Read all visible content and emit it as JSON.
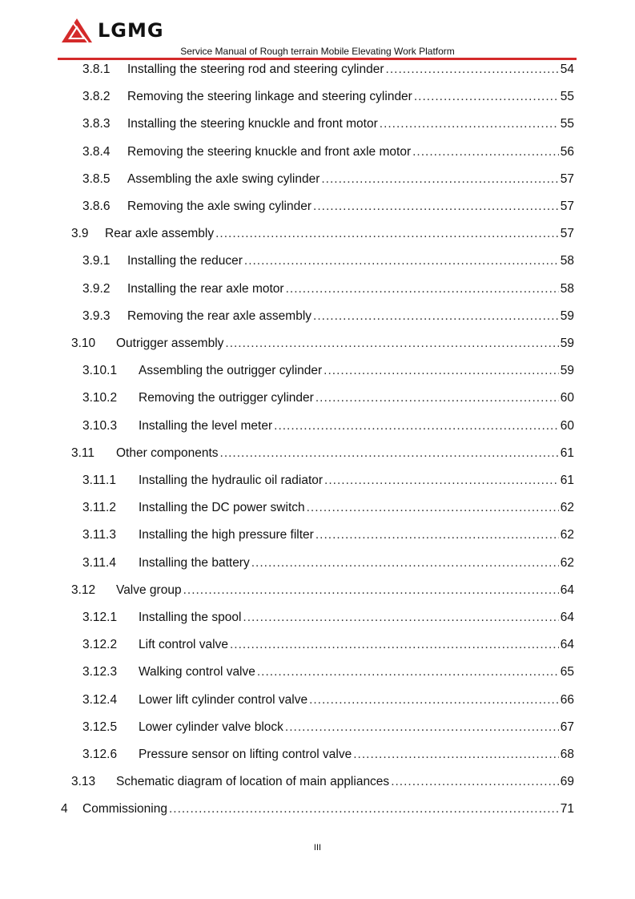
{
  "header": {
    "logo_text": "LGMG",
    "subtitle": "Service Manual of Rough terrain Mobile Elevating Work Platform",
    "accent_color": "#d42a2a"
  },
  "toc": [
    {
      "level": 3,
      "num": "3.8.1",
      "title": "Installing the steering rod and steering cylinder",
      "page": "54"
    },
    {
      "level": 3,
      "num": "3.8.2",
      "title": "Removing the steering linkage and steering cylinder",
      "page": "55"
    },
    {
      "level": 3,
      "num": "3.8.3",
      "title": "Installing the steering knuckle and front motor",
      "page": "55"
    },
    {
      "level": 3,
      "num": "3.8.4",
      "title": "Removing the steering knuckle and front axle motor",
      "page": "56"
    },
    {
      "level": 3,
      "num": "3.8.5",
      "title": "Assembling the axle swing cylinder",
      "page": "57"
    },
    {
      "level": 3,
      "num": "3.8.6",
      "title": "Removing the axle swing cylinder",
      "page": "57"
    },
    {
      "level": 2,
      "num": "3.9",
      "title": "Rear axle assembly",
      "page": "57"
    },
    {
      "level": 3,
      "num": "3.9.1",
      "title": "Installing the reducer",
      "page": "58"
    },
    {
      "level": 3,
      "num": "3.9.2",
      "title": "Installing the rear axle motor",
      "page": "58"
    },
    {
      "level": 3,
      "num": "3.9.3",
      "title": "Removing the rear axle assembly",
      "page": "59"
    },
    {
      "level": 2,
      "num": "3.10",
      "title": "Outrigger assembly",
      "page": "59"
    },
    {
      "level": 3,
      "num": "3.10.1",
      "title": "Assembling the outrigger cylinder",
      "page": "59"
    },
    {
      "level": 3,
      "num": "3.10.2",
      "title": "Removing the outrigger cylinder",
      "page": "60"
    },
    {
      "level": 3,
      "num": "3.10.3",
      "title": "Installing the level meter",
      "page": "60"
    },
    {
      "level": 2,
      "num": "3.11",
      "title": "Other components",
      "page": "61"
    },
    {
      "level": 3,
      "num": "3.11.1",
      "title": "Installing the hydraulic oil radiator",
      "page": "61"
    },
    {
      "level": 3,
      "num": "3.11.2",
      "title": "Installing the DC power switch",
      "page": "62"
    },
    {
      "level": 3,
      "num": "3.11.3",
      "title": "Installing the high pressure filter",
      "page": "62"
    },
    {
      "level": 3,
      "num": "3.11.4",
      "title": "Installing the battery",
      "page": "62"
    },
    {
      "level": 2,
      "num": "3.12",
      "title": "Valve group",
      "page": "64"
    },
    {
      "level": 3,
      "num": "3.12.1",
      "title": "Installing the spool",
      "page": "64"
    },
    {
      "level": 3,
      "num": "3.12.2",
      "title": "Lift control valve",
      "page": "64"
    },
    {
      "level": 3,
      "num": "3.12.3",
      "title": "Walking control valve",
      "page": "65"
    },
    {
      "level": 3,
      "num": "3.12.4",
      "title": "Lower lift cylinder control valve",
      "page": "66"
    },
    {
      "level": 3,
      "num": "3.12.5",
      "title": "Lower cylinder valve block",
      "page": "67"
    },
    {
      "level": 3,
      "num": "3.12.6",
      "title": "Pressure sensor on lifting control valve",
      "page": "68"
    },
    {
      "level": 2,
      "num": "3.13",
      "title": "Schematic diagram of location of main appliances",
      "page": "69"
    },
    {
      "level": 1,
      "num": "4",
      "title": "Commissioning",
      "page": "71"
    }
  ],
  "footer": {
    "page_label": "III"
  }
}
